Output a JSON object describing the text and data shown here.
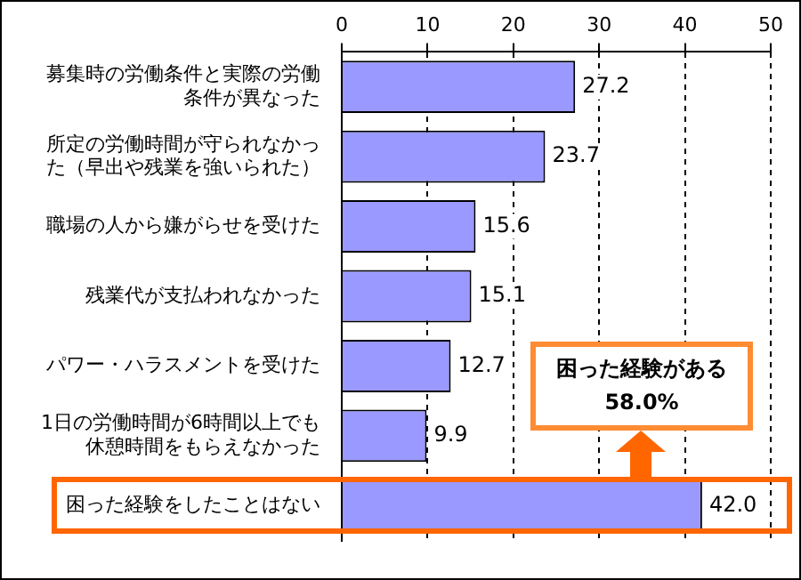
{
  "chart_data": {
    "type": "bar",
    "orientation": "horizontal",
    "categories": [
      "募集時の労働条件と実際の労働条件が異なった",
      "所定の労働時間が守られなかった（早出や残業を強いられた）",
      "職場の人から嫌がらせを受けた",
      "残業代が支払われなかった",
      "パワー・ハラスメントを受けた",
      "1日の労働時間が6時間以上でも休憩時間をもらえなかった",
      "困った経験をしたことはない"
    ],
    "values": [
      27.2,
      23.7,
      15.6,
      15.1,
      12.7,
      9.9,
      42.0
    ],
    "value_labels": [
      "27.2",
      "23.7",
      "15.6",
      "15.1",
      "12.7",
      "9.9",
      "42.0"
    ],
    "color": "#9999ff",
    "xlim": [
      0,
      50
    ],
    "xticks": [
      0,
      10,
      20,
      30,
      40,
      50
    ],
    "grid": "x",
    "legend": false,
    "annotations": [
      "困った経験がある\n58.0%"
    ]
  }
}
